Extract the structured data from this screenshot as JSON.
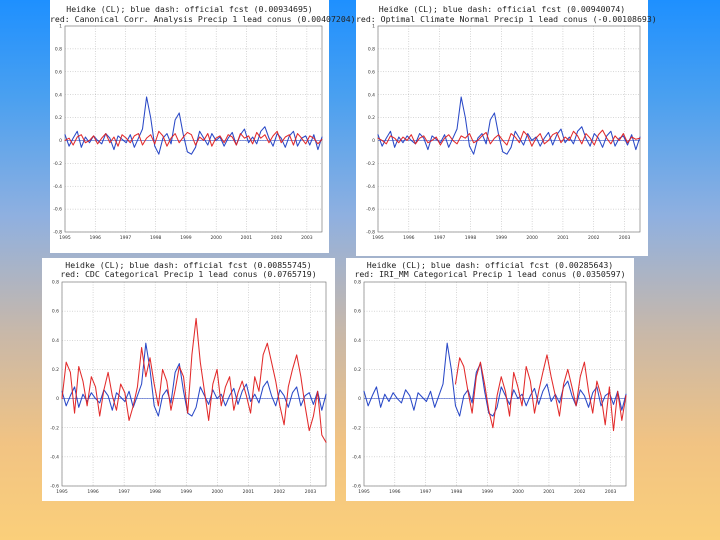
{
  "chart_data": [
    {
      "type": "line",
      "title": "Heidke (CL); blue dash: official fcst (0.00934695)",
      "subtitle": "red: Canonical Corr. Analysis Precip 1 lead conus (0.00407204)",
      "xlabel": "",
      "ylabel": "",
      "ylim": [
        -0.8,
        1.0
      ],
      "yticks": [
        "-0.8",
        "-0.6",
        "-0.4",
        "-0.2",
        "0",
        "0.2",
        "0.4",
        "0.6",
        "0.8",
        "1"
      ],
      "xlim": [
        1995,
        2003.5
      ],
      "xticks": [
        "1995",
        "1996",
        "1997",
        "1998",
        "1999",
        "2000",
        "2001",
        "2002",
        "2003"
      ],
      "series": [
        {
          "name": "official fcst",
          "color": "#1f3fc4",
          "values": [
            0.05,
            -0.05,
            0.02,
            0.08,
            -0.06,
            0.03,
            -0.02,
            0.04,
            0.0,
            -0.03,
            0.06,
            0.02,
            -0.08,
            0.04,
            0.01,
            -0.02,
            0.05,
            -0.06,
            0.02,
            0.1,
            0.38,
            0.2,
            -0.05,
            -0.12,
            0.02,
            0.06,
            -0.03,
            0.18,
            0.24,
            0.05,
            -0.1,
            -0.12,
            -0.06,
            0.08,
            0.02,
            -0.04,
            0.06,
            0.0,
            0.03,
            -0.05,
            0.02,
            0.07,
            -0.04,
            0.05,
            0.1,
            -0.02,
            0.03,
            -0.03,
            0.08,
            0.12,
            0.02,
            -0.05,
            0.06,
            0.02,
            -0.06,
            0.04,
            0.08,
            -0.05,
            0.02,
            0.04,
            -0.04,
            0.05,
            -0.08,
            0.03
          ]
        },
        {
          "name": "Canonical Corr. Analysis",
          "color": "#e02020",
          "values": [
            0.0,
            0.02,
            -0.04,
            0.03,
            0.05,
            -0.02,
            0.0,
            0.04,
            -0.03,
            0.02,
            0.06,
            -0.02,
            0.03,
            -0.05,
            0.05,
            0.02,
            -0.02,
            0.04,
            0.06,
            -0.04,
            0.02,
            0.05,
            -0.03,
            0.08,
            0.04,
            -0.05,
            0.02,
            0.06,
            -0.02,
            0.03,
            0.07,
            0.05,
            -0.04,
            0.03,
            0.0,
            0.06,
            -0.05,
            0.02,
            0.04,
            -0.02,
            0.05,
            0.03,
            -0.04,
            0.06,
            0.02,
            0.04,
            -0.03,
            0.07,
            0.02,
            0.05,
            -0.02,
            0.04,
            0.08,
            -0.02,
            0.03,
            0.05,
            -0.04,
            0.06,
            0.02,
            -0.03,
            0.04,
            0.02,
            -0.03,
            0.01
          ]
        }
      ]
    },
    {
      "type": "line",
      "title": "Heidke (CL); blue dash: official fcst (0.00940074)",
      "subtitle": "red: Optimal Climate Normal Precip 1 lead conus (-0.00108693)",
      "xlabel": "",
      "ylabel": "",
      "ylim": [
        -0.8,
        1.0
      ],
      "yticks": [
        "-0.8",
        "-0.6",
        "-0.4",
        "-0.2",
        "0",
        "0.2",
        "0.4",
        "0.6",
        "0.8",
        "1"
      ],
      "xlim": [
        1995,
        2003.5
      ],
      "xticks": [
        "1995",
        "1996",
        "1997",
        "1998",
        "1999",
        "2000",
        "2001",
        "2002",
        "2003"
      ],
      "series": [
        {
          "name": "official fcst",
          "color": "#1f3fc4",
          "values": [
            0.05,
            -0.05,
            0.02,
            0.08,
            -0.06,
            0.03,
            -0.02,
            0.04,
            0.0,
            -0.03,
            0.06,
            0.02,
            -0.08,
            0.04,
            0.01,
            -0.02,
            0.05,
            -0.06,
            0.02,
            0.1,
            0.38,
            0.2,
            -0.05,
            -0.12,
            0.02,
            0.06,
            -0.03,
            0.18,
            0.24,
            0.05,
            -0.1,
            -0.12,
            -0.06,
            0.08,
            0.02,
            -0.04,
            0.06,
            0.0,
            0.03,
            -0.05,
            0.02,
            0.07,
            -0.04,
            0.05,
            0.1,
            -0.02,
            0.03,
            -0.03,
            0.08,
            0.12,
            0.02,
            -0.05,
            0.06,
            0.02,
            -0.06,
            0.04,
            0.08,
            -0.05,
            0.02,
            0.04,
            -0.04,
            0.05,
            -0.08,
            0.03
          ]
        },
        {
          "name": "Optimal Climate Normal",
          "color": "#e02020",
          "values": [
            0.02,
            0.0,
            -0.03,
            0.04,
            0.02,
            -0.02,
            0.03,
            0.0,
            0.05,
            -0.03,
            0.02,
            0.04,
            -0.02,
            0.0,
            0.03,
            -0.04,
            0.02,
            0.05,
            0.0,
            -0.03,
            0.04,
            0.02,
            0.06,
            -0.02,
            0.0,
            0.04,
            0.07,
            -0.03,
            0.02,
            0.05,
            0.0,
            -0.04,
            0.06,
            0.03,
            -0.02,
            0.08,
            0.04,
            -0.05,
            0.02,
            0.06,
            -0.03,
            0.0,
            0.05,
            0.07,
            -0.02,
            0.03,
            0.0,
            0.08,
            0.04,
            -0.03,
            0.06,
            0.02,
            -0.04,
            0.05,
            0.09,
            0.02,
            -0.03,
            0.04,
            0.0,
            0.06,
            -0.02,
            0.03,
            0.01,
            0.02
          ]
        }
      ]
    },
    {
      "type": "line",
      "title": "Heidke (CL); blue dash: official fcst (0.00855745)",
      "subtitle": "red: CDC Categorical Precip 1 lead conus (0.0765719)",
      "xlabel": "",
      "ylabel": "",
      "ylim": [
        -0.6,
        0.8
      ],
      "yticks": [
        "-0.6",
        "-0.4",
        "-0.2",
        "0",
        "0.2",
        "0.4",
        "0.6",
        "0.8"
      ],
      "xlim": [
        1995,
        2003.5
      ],
      "xticks": [
        "1995",
        "1996",
        "1997",
        "1998",
        "1999",
        "2000",
        "2001",
        "2002",
        "2003"
      ],
      "series": [
        {
          "name": "official fcst",
          "color": "#1f3fc4",
          "values": [
            0.05,
            -0.05,
            0.02,
            0.08,
            -0.06,
            0.03,
            -0.02,
            0.04,
            0.0,
            -0.03,
            0.06,
            0.02,
            -0.08,
            0.04,
            0.01,
            -0.02,
            0.05,
            -0.06,
            0.02,
            0.1,
            0.38,
            0.2,
            -0.05,
            -0.12,
            0.02,
            0.06,
            -0.03,
            0.18,
            0.24,
            0.05,
            -0.1,
            -0.12,
            -0.06,
            0.08,
            0.02,
            -0.04,
            0.06,
            0.0,
            0.03,
            -0.05,
            0.02,
            0.07,
            -0.04,
            0.05,
            0.1,
            -0.02,
            0.03,
            -0.03,
            0.08,
            0.12,
            0.02,
            -0.05,
            0.06,
            0.02,
            -0.06,
            0.04,
            0.08,
            -0.05,
            0.02,
            0.04,
            -0.04,
            0.05,
            -0.08,
            0.03
          ]
        },
        {
          "name": "CDC Categorical",
          "color": "#e02020",
          "values": [
            0.0,
            0.25,
            0.18,
            -0.1,
            0.22,
            0.12,
            -0.05,
            0.15,
            0.08,
            -0.12,
            0.06,
            0.18,
            0.02,
            -0.08,
            0.1,
            0.04,
            -0.15,
            -0.05,
            0.08,
            0.35,
            0.15,
            0.28,
            0.1,
            -0.05,
            0.2,
            0.12,
            -0.08,
            0.06,
            0.22,
            0.15,
            -0.1,
            0.3,
            0.55,
            0.25,
            0.05,
            -0.15,
            0.1,
            0.2,
            -0.05,
            0.08,
            0.15,
            -0.08,
            0.04,
            0.12,
            0.02,
            -0.1,
            0.15,
            0.05,
            0.3,
            0.38,
            0.25,
            0.12,
            -0.05,
            -0.18,
            0.08,
            0.2,
            0.3,
            0.15,
            -0.05,
            -0.22,
            -0.12,
            0.05,
            -0.25,
            -0.3
          ]
        }
      ]
    },
    {
      "type": "line",
      "title": "Heidke (CL); blue dash: official fcst (0.00285643)",
      "subtitle": "red: IRI_MM Categorical Precip 1 lead conus (0.0350597)",
      "xlabel": "",
      "ylabel": "",
      "ylim": [
        -0.6,
        0.8
      ],
      "yticks": [
        "-0.6",
        "-0.4",
        "-0.2",
        "0",
        "0.2",
        "0.4",
        "0.6",
        "0.8"
      ],
      "xlim": [
        1995,
        2003.5
      ],
      "xticks": [
        "1995",
        "1996",
        "1997",
        "1998",
        "1999",
        "2000",
        "2001",
        "2002",
        "2003"
      ],
      "series": [
        {
          "name": "official fcst",
          "color": "#1f3fc4",
          "values": [
            0.05,
            -0.05,
            0.02,
            0.08,
            -0.06,
            0.03,
            -0.02,
            0.04,
            0.0,
            -0.03,
            0.06,
            0.02,
            -0.08,
            0.04,
            0.01,
            -0.02,
            0.05,
            -0.06,
            0.02,
            0.1,
            0.38,
            0.2,
            -0.05,
            -0.12,
            0.02,
            0.06,
            -0.03,
            0.18,
            0.24,
            0.05,
            -0.1,
            -0.12,
            -0.06,
            0.08,
            0.02,
            -0.04,
            0.06,
            0.0,
            0.03,
            -0.05,
            0.02,
            0.07,
            -0.04,
            0.05,
            0.1,
            -0.02,
            0.03,
            -0.03,
            0.08,
            0.12,
            0.02,
            -0.05,
            0.06,
            0.02,
            -0.06,
            0.04,
            0.08,
            -0.05,
            0.02,
            0.04,
            -0.04,
            0.05,
            -0.08,
            0.03
          ]
        },
        {
          "name": "IRI_MM Categorical",
          "color": "#e02020",
          "values": [
            null,
            null,
            null,
            null,
            null,
            null,
            null,
            null,
            null,
            null,
            null,
            null,
            null,
            null,
            null,
            null,
            null,
            null,
            null,
            null,
            null,
            null,
            0.1,
            0.28,
            0.22,
            0.05,
            -0.1,
            0.15,
            0.25,
            0.1,
            -0.08,
            -0.2,
            0.02,
            0.15,
            0.05,
            -0.12,
            0.18,
            0.08,
            -0.05,
            0.22,
            0.12,
            -0.1,
            0.05,
            0.18,
            0.3,
            0.15,
            0.02,
            -0.12,
            0.1,
            0.2,
            0.08,
            -0.05,
            0.15,
            0.25,
            0.05,
            -0.1,
            0.12,
            0.02,
            -0.18,
            0.08,
            -0.22,
            0.05,
            -0.15,
            0.02
          ]
        }
      ]
    }
  ]
}
